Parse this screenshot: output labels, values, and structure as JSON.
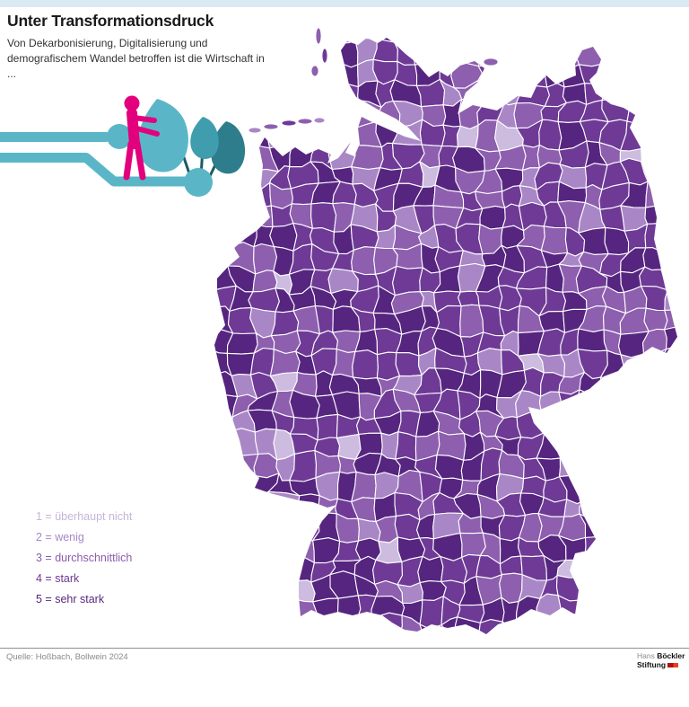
{
  "page": {
    "background": "#ffffff",
    "top_bar_color": "#d9eaf2"
  },
  "header": {
    "title": "Unter Transformationsdruck",
    "subtitle_line1": "Von Dekarbonisierung, Digitalisierung und",
    "subtitle_line2": "demografischem Wandel betroffen ist die Wirtschaft in ..."
  },
  "legend": {
    "items": [
      {
        "text": "1 = überhaupt nicht",
        "value": 1,
        "label": "überhaupt nicht",
        "color": "#c6b5d9"
      },
      {
        "text": "2 = wenig",
        "value": 2,
        "label": "wenig",
        "color": "#a787c6"
      },
      {
        "text": "3 = durchschnittlich",
        "value": 3,
        "label": "durchschnittlich",
        "color": "#8a5cac"
      },
      {
        "text": "4 = stark",
        "value": 4,
        "label": "stark",
        "color": "#6b3894"
      },
      {
        "text": "5 = sehr stark",
        "value": 5,
        "label": "sehr stark",
        "color": "#55277e"
      }
    ]
  },
  "chart_data": {
    "type": "heatmap",
    "subtype": "choropleth map of Germany by district (Landkreise)",
    "title": "Unter Transformationsdruck",
    "scale_min": 1,
    "scale_max": 5,
    "levels": [
      {
        "value": 1,
        "label": "überhaupt nicht",
        "color": "#cdbcdf"
      },
      {
        "value": 2,
        "label": "wenig",
        "color": "#a987c6"
      },
      {
        "value": 3,
        "label": "durchschnittlich",
        "color": "#8d5fae"
      },
      {
        "value": 4,
        "label": "stark",
        "color": "#6e3a96"
      },
      {
        "value": 5,
        "label": "sehr stark",
        "color": "#56257f"
      }
    ],
    "estimated_level_share": {
      "1": 0.02,
      "2": 0.1,
      "3": 0.24,
      "4": 0.34,
      "5": 0.3
    },
    "district_border_color": "#ffffff",
    "legend_position": "bottom-left",
    "note": "Districts are not individually labeled; most districts are shaded between level 3 and level 5"
  },
  "illustration": {
    "person_color": "#e3007d",
    "teal_light": "#5ab6c7",
    "teal_medium": "#3f9dae",
    "teal_dark": "#2e7d8c",
    "stem_color": "#1d5a66"
  },
  "footer": {
    "source": "Quelle: Hoßbach, Bollwein 2024",
    "logo": {
      "word1": "Hans",
      "word2": "Böckler",
      "word3": "Stiftung"
    }
  }
}
